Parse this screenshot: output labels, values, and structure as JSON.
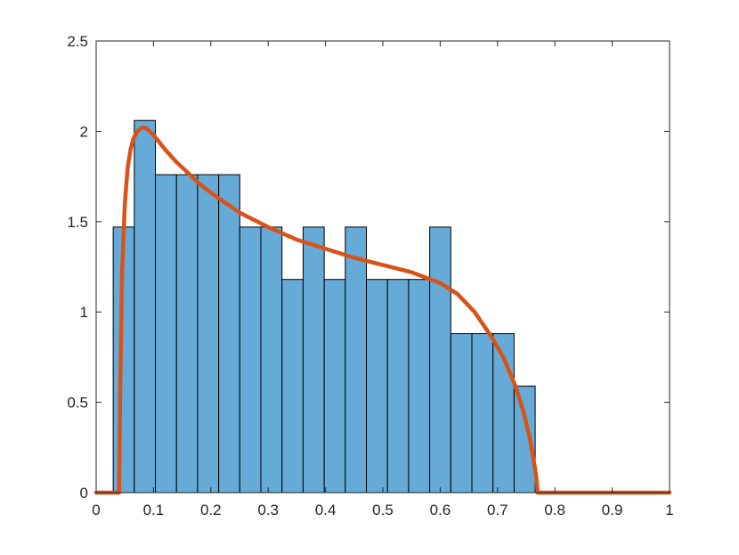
{
  "chart_data": {
    "type": "bar",
    "title": "",
    "xlabel": "",
    "ylabel": "",
    "xlim": [
      0,
      1
    ],
    "ylim": [
      0,
      2.5
    ],
    "grid": false,
    "x_ticks": [
      "0",
      "0.1",
      "0.2",
      "0.3",
      "0.4",
      "0.5",
      "0.6",
      "0.7",
      "0.8",
      "0.9",
      "1"
    ],
    "y_ticks": [
      "0",
      "0.5",
      "1",
      "1.5",
      "2",
      "2.5"
    ],
    "bar_color": "#66aad7",
    "bar_edge_color": "#000000",
    "curve_color": "#d95319",
    "histogram": {
      "bin_edges": [
        0.0297,
        0.0665,
        0.1033,
        0.1401,
        0.1769,
        0.2137,
        0.2505,
        0.2873,
        0.3241,
        0.3609,
        0.3977,
        0.4345,
        0.4713,
        0.5081,
        0.5449,
        0.5817,
        0.6185,
        0.6553,
        0.6921,
        0.7289,
        0.7657
      ],
      "values": [
        1.47,
        2.06,
        1.76,
        1.76,
        1.76,
        1.76,
        1.47,
        1.47,
        1.18,
        1.47,
        1.18,
        1.47,
        1.18,
        1.18,
        1.18,
        1.47,
        0.88,
        0.88,
        0.88,
        0.59
      ]
    },
    "series": [
      {
        "type": "line",
        "x": [
          0,
          0.04,
          0.042,
          0.045,
          0.05,
          0.055,
          0.06,
          0.065,
          0.07,
          0.075,
          0.08,
          0.085,
          0.09,
          0.1,
          0.12,
          0.14,
          0.16,
          0.18,
          0.2,
          0.25,
          0.3,
          0.35,
          0.4,
          0.45,
          0.5,
          0.55,
          0.6,
          0.63,
          0.66,
          0.69,
          0.71,
          0.73,
          0.745,
          0.755,
          0.762,
          0.767,
          0.769,
          0.77,
          0.8,
          0.9,
          1.0
        ],
        "y": [
          0,
          0,
          0.6,
          1.2,
          1.6,
          1.8,
          1.9,
          1.96,
          1.99,
          2.01,
          2.02,
          2.02,
          2.01,
          1.98,
          1.9,
          1.83,
          1.77,
          1.71,
          1.66,
          1.55,
          1.47,
          1.4,
          1.35,
          1.3,
          1.26,
          1.22,
          1.16,
          1.1,
          1.0,
          0.86,
          0.75,
          0.6,
          0.45,
          0.32,
          0.2,
          0.1,
          0.04,
          0,
          0,
          0,
          0
        ]
      }
    ]
  }
}
